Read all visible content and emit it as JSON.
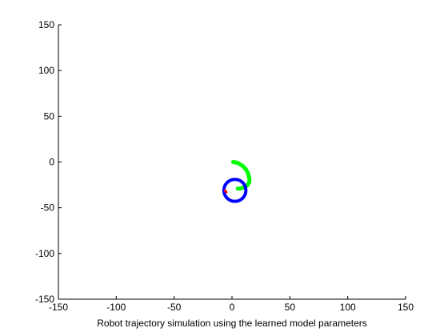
{
  "chart_data": {
    "type": "line",
    "title": "",
    "xlabel": "Robot trajectory simulation using the learned model parameters",
    "ylabel": "",
    "xlim": [
      -150,
      150
    ],
    "ylim": [
      -150,
      150
    ],
    "xticks": [
      -150,
      -100,
      -50,
      0,
      50,
      100,
      150
    ],
    "yticks": [
      -150,
      -100,
      -50,
      0,
      50,
      100,
      150
    ],
    "grid": false,
    "legend": "none",
    "series": [
      {
        "color": "#00ff00",
        "points": [
          [
            1,
            0
          ],
          [
            5,
            -1
          ],
          [
            9,
            -4
          ],
          [
            12,
            -8
          ],
          [
            14,
            -13
          ],
          [
            15,
            -18
          ],
          [
            15,
            -22
          ],
          [
            13,
            -26
          ],
          [
            10,
            -28
          ],
          [
            7,
            -29
          ],
          [
            5,
            -29
          ]
        ]
      },
      {
        "color": "#0000ff",
        "circle": {
          "cx": 2.5,
          "cy": -31,
          "r": 9.5
        }
      },
      {
        "color": "#ff0000",
        "points": [
          [
            -6,
            -31
          ],
          [
            -5,
            -33
          ]
        ]
      }
    ]
  }
}
